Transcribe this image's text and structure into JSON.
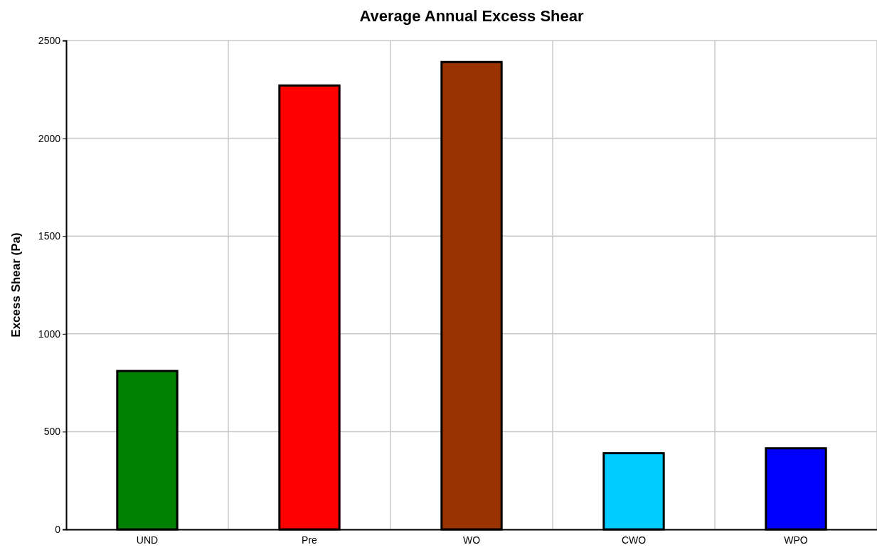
{
  "chart_data": {
    "type": "bar",
    "title": "Average Annual Excess Shear",
    "ylabel": "Excess Shear (Pa)",
    "categories": [
      "UND",
      "Pre",
      "WO",
      "CWO",
      "WPO"
    ],
    "values": [
      810,
      2270,
      2390,
      390,
      415
    ],
    "colors": [
      "#008000",
      "#ff0000",
      "#993300",
      "#00ccff",
      "#0000ff"
    ],
    "ylim": [
      0,
      2500
    ],
    "yticks": [
      0,
      500,
      1000,
      1500,
      2000,
      2500
    ],
    "grid": true
  }
}
